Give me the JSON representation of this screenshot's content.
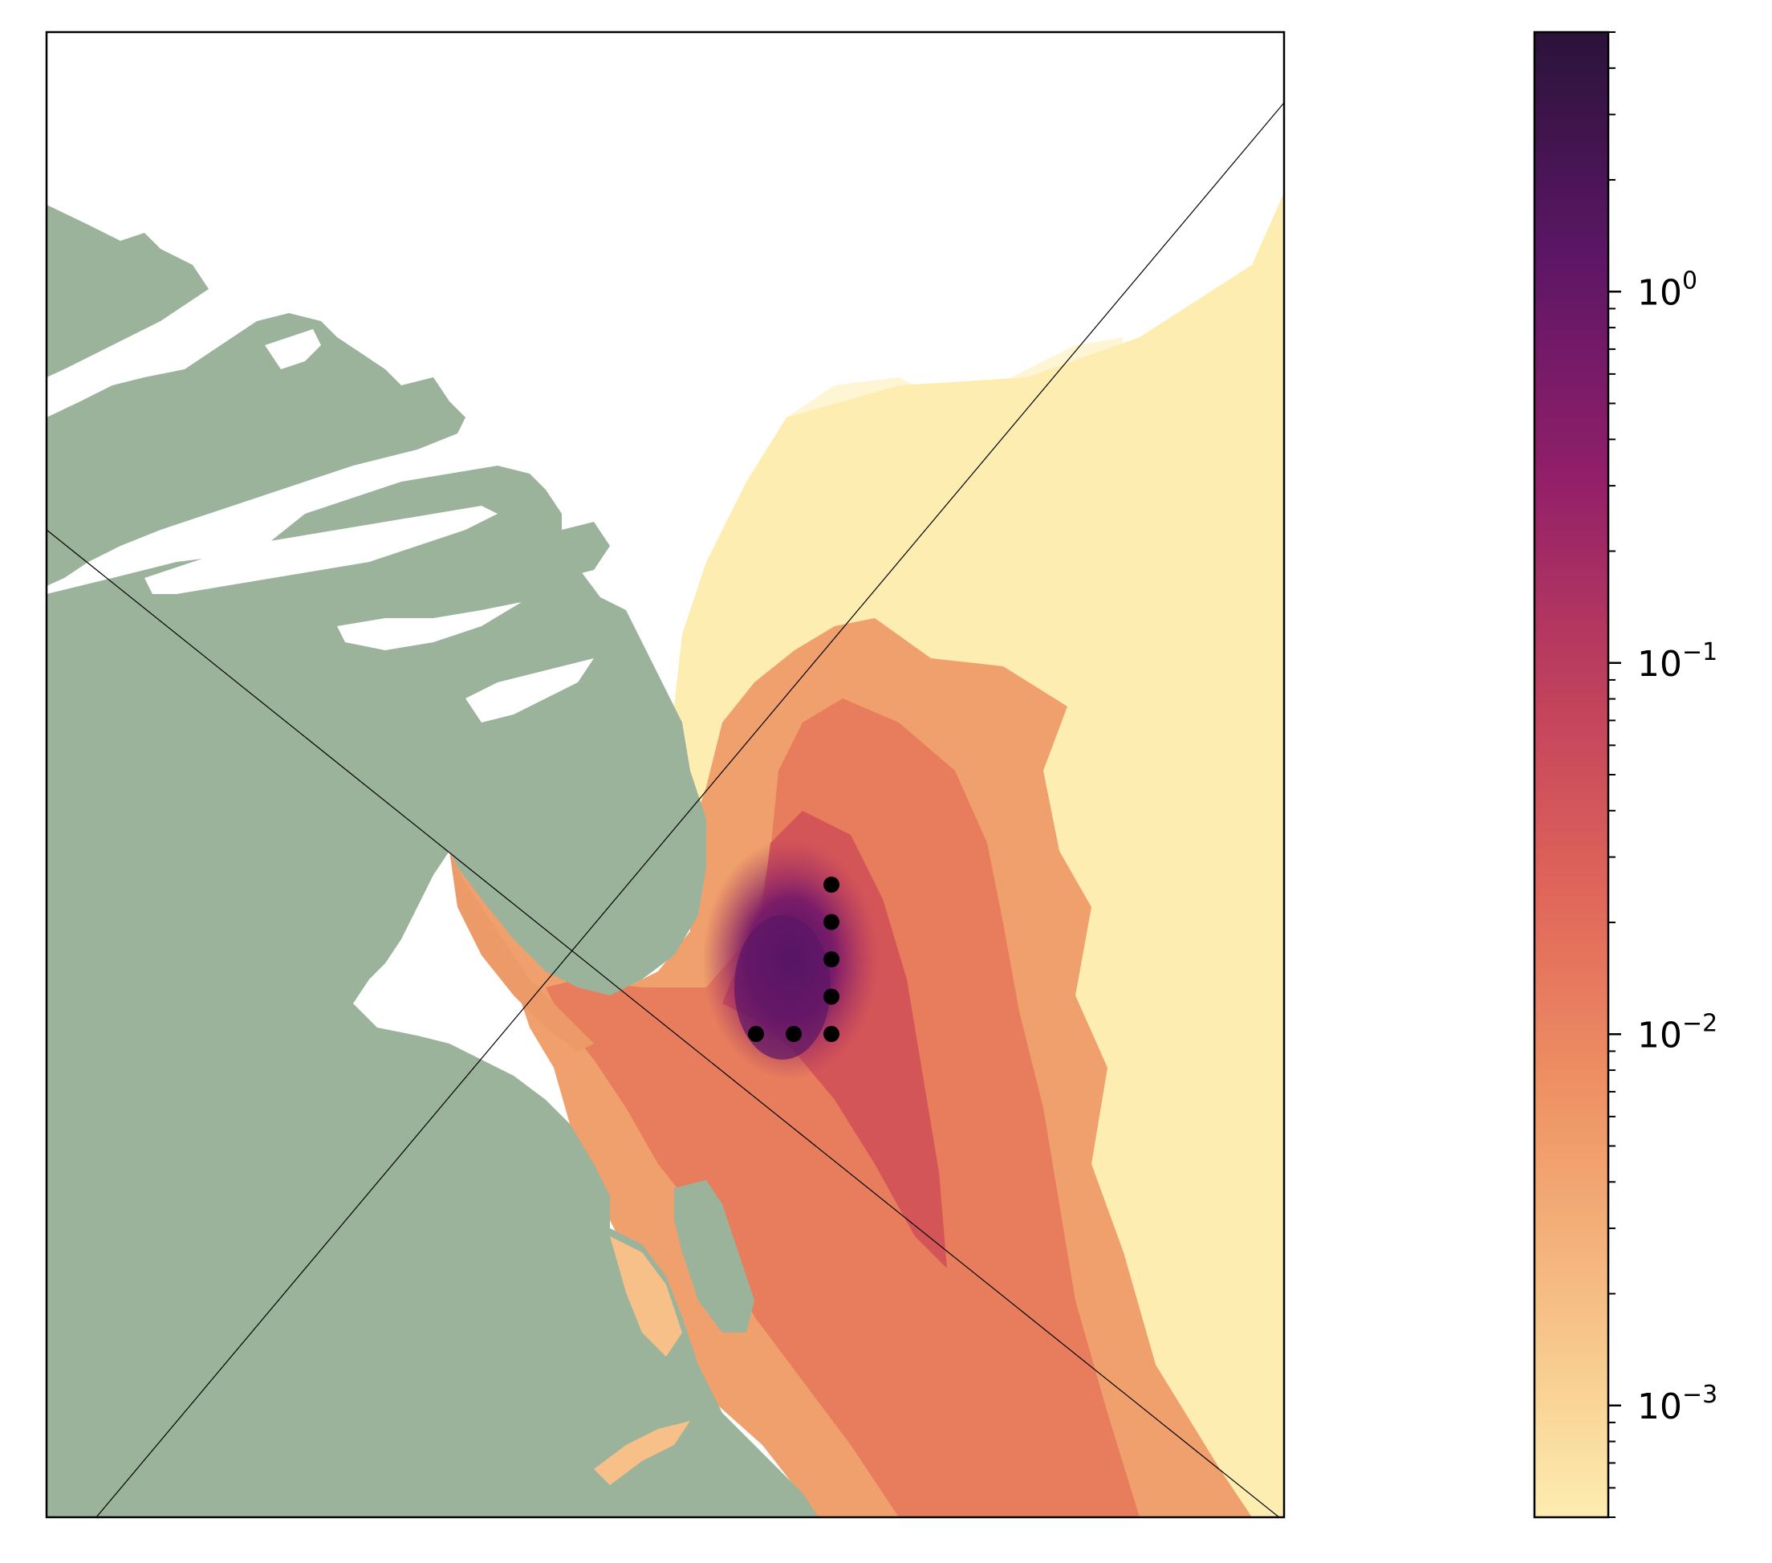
{
  "colors": {
    "land": "#9bb39a",
    "ocean_blank": "#ffffff",
    "colormap": [
      "#fdedb0",
      "#f6b87c",
      "#ed8a5f",
      "#dc5d56",
      "#b8375d",
      "#8b1f68",
      "#5a1664",
      "#2a1339"
    ],
    "site_markers": "#000000",
    "frame": "#000000"
  },
  "map": {
    "release_sites": [
      {
        "row": 1,
        "col": 3
      },
      {
        "row": 2,
        "col": 3
      },
      {
        "row": 3,
        "col": 3
      },
      {
        "row": 4,
        "col": 3
      },
      {
        "row": 5,
        "col": 3
      },
      {
        "row": 5,
        "col": 2
      },
      {
        "row": 5,
        "col": 1
      }
    ],
    "diagonal_lines": 2
  },
  "colorbar": {
    "scale": "log",
    "range": [
      0.0005,
      5
    ],
    "ticks": [
      {
        "value": 1,
        "base": "10",
        "exponent": "0"
      },
      {
        "value": 0.1,
        "base": "10",
        "exponent": "−1"
      },
      {
        "value": 0.01,
        "base": "10",
        "exponent": "−2"
      },
      {
        "value": 0.001,
        "base": "10",
        "exponent": "−3"
      }
    ]
  }
}
